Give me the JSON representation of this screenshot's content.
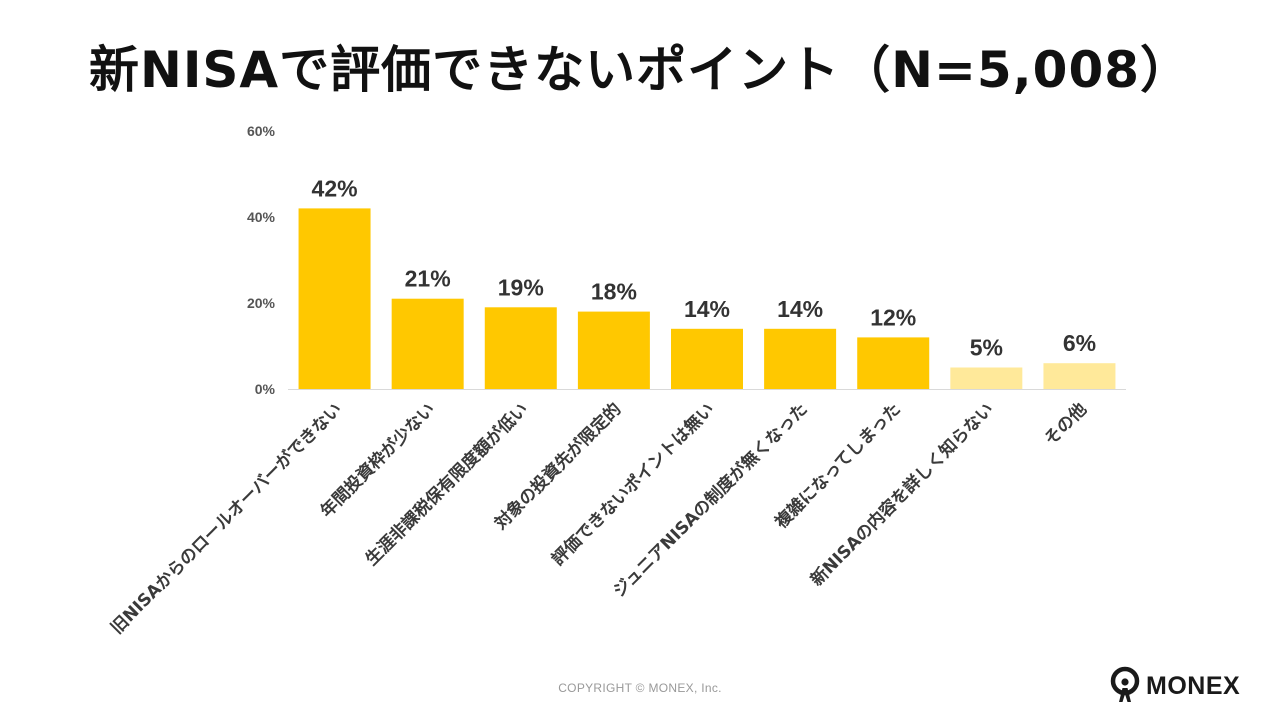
{
  "title": "新NISAで評価できないポイント（N=5,008）",
  "copyright": "COPYRIGHT © MONEX, Inc.",
  "brand": {
    "name": "MONEX",
    "logo_icon": "monex-figure-icon"
  },
  "colors": {
    "bar_primary": "#FFC800",
    "bar_light": "#FFE99A",
    "axis_text": "#555555",
    "value_text": "#333333"
  },
  "chart_data": {
    "type": "bar",
    "categories": [
      "旧NISAからのロールオーバーができない",
      "年間投資枠が少ない",
      "生涯非課税保有限度額が低い",
      "対象の投資先が限定的",
      "評価できないポイントは無い",
      "ジュニアNISAの制度が無くなった",
      "複雑になってしまった",
      "新NISAの内容を詳しく知らない",
      "その他"
    ],
    "values": [
      42,
      21,
      19,
      18,
      14,
      14,
      12,
      5,
      6
    ],
    "value_labels": [
      "42%",
      "21%",
      "19%",
      "18%",
      "14%",
      "14%",
      "12%",
      "5%",
      "6%"
    ],
    "highlight": [
      true,
      true,
      true,
      true,
      true,
      true,
      true,
      false,
      false
    ],
    "yticks": [
      0,
      20,
      40,
      60
    ],
    "ytick_labels": [
      "0%",
      "20%",
      "40%",
      "60%"
    ],
    "ylim": [
      0,
      60
    ],
    "grid": false,
    "legend": "none"
  }
}
